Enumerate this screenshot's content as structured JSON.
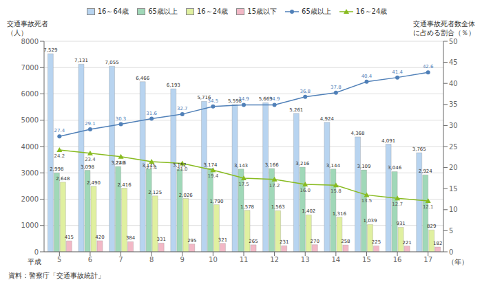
{
  "chart_data": {
    "type": "bar",
    "legend": "top",
    "grid": true,
    "data_labels": true,
    "categories": [
      "5",
      "6",
      "7",
      "8",
      "9",
      "10",
      "11",
      "12",
      "13",
      "14",
      "15",
      "16",
      "17"
    ],
    "ylabel": [
      "交通事故死者",
      "（人）"
    ],
    "y2label": [
      "交通事故死者数全体",
      "に占める割合（％）"
    ],
    "annotations": [
      "平成",
      "（年）"
    ],
    "source": "資料：警察庁「交通事故統計」",
    "ylim": [
      0,
      8000
    ],
    "yticks": [
      0,
      1000,
      2000,
      3000,
      4000,
      5000,
      6000,
      7000,
      8000
    ],
    "y2lim": [
      0,
      50
    ],
    "y2ticks": [
      0,
      5,
      10,
      15,
      20,
      25,
      30,
      35,
      40,
      45,
      50
    ],
    "series": [
      {
        "name": "16～64歳",
        "type": "bar",
        "color": "#b8d4f0",
        "values": [
          7529,
          7131,
          7055,
          6466,
          6193,
          5716,
          5598,
          5669,
          5261,
          4924,
          4368,
          4091,
          3765
        ],
        "value_labels": [
          "7,529",
          "7,131",
          "7,055",
          "6,466",
          "6,193",
          "5,716",
          "5,598",
          "5,669",
          "5,261",
          "4,924",
          "4,368",
          "4,091",
          "3,765"
        ]
      },
      {
        "name": "65歳以上",
        "type": "bar",
        "color": "#a0d8b8",
        "values": [
          2998,
          3098,
          3240,
          3145,
          3152,
          3174,
          3143,
          3166,
          3216,
          3144,
          3109,
          3046,
          2924
        ],
        "value_labels": [
          "2,998",
          "3,098",
          "3,240",
          "3,145",
          "3,152",
          "3,174",
          "3,143",
          "3,166",
          "3,216",
          "3,144",
          "3,109",
          "3,046",
          "2,924"
        ]
      },
      {
        "name": "16～24歳",
        "type": "bar",
        "color": "#e0f0a0",
        "values": [
          2648,
          2490,
          2416,
          2125,
          2026,
          1790,
          1578,
          1563,
          1402,
          1316,
          1039,
          931,
          829
        ],
        "value_labels": [
          "2,648",
          "2,490",
          "2,416",
          "2,125",
          "2,026",
          "1,790",
          "1,578",
          "1,563",
          "1,402",
          "1,316",
          "1,039",
          "931",
          "829"
        ]
      },
      {
        "name": "15歳以下",
        "type": "bar",
        "color": "#f2b8c6",
        "values": [
          415,
          420,
          384,
          331,
          295,
          321,
          265,
          231,
          270,
          258,
          225,
          221,
          182
        ]
      },
      {
        "name": "65歳以上",
        "type": "line",
        "axis": "y2",
        "marker": "circle",
        "color": "#5080b8",
        "values": [
          27.4,
          29.1,
          30.3,
          31.6,
          32.7,
          34.5,
          34.9,
          34.9,
          36.8,
          37.8,
          40.4,
          41.4,
          42.6
        ]
      },
      {
        "name": "16～24歳",
        "type": "line",
        "axis": "y2",
        "marker": "triangle",
        "color": "#88bb20",
        "values": [
          24.2,
          23.4,
          22.6,
          21.4,
          21.0,
          19.4,
          17.5,
          17.2,
          16.0,
          15.8,
          13.5,
          12.7,
          12.1
        ],
        "value_labels": [
          "24.2",
          "23.4",
          "22.6",
          "21.4",
          "21.0",
          "19.4",
          "17.5",
          "17.2",
          "16.0",
          "15.8",
          "13.5",
          "12.7",
          "12.1"
        ]
      }
    ]
  }
}
